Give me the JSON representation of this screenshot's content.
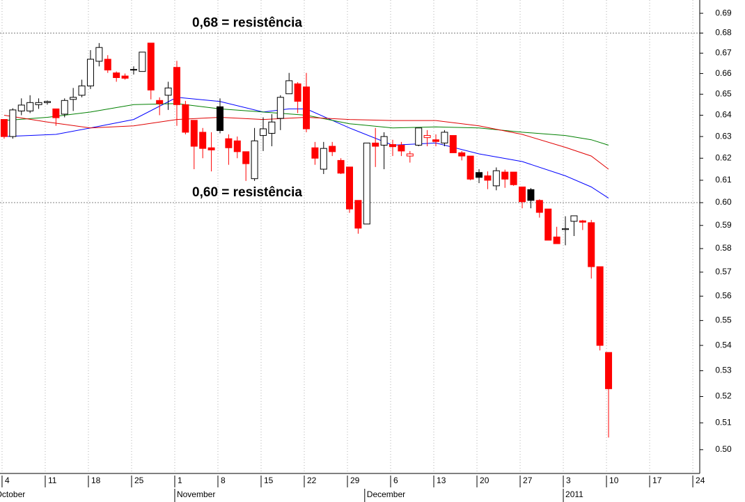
{
  "chart_data": {
    "type": "candlestick",
    "x": [
      0,
      1,
      2,
      3,
      4,
      5,
      6,
      7,
      8,
      9,
      10,
      11,
      12,
      13,
      14,
      15,
      16,
      17,
      18,
      19,
      20,
      21,
      22,
      23,
      24,
      25,
      26,
      27,
      28,
      29,
      30,
      31,
      32,
      33,
      34,
      35,
      36,
      37,
      38,
      39,
      40,
      41,
      42,
      43,
      44,
      45,
      46,
      47,
      48,
      49,
      50,
      51,
      52,
      53,
      54,
      55,
      56,
      57,
      58,
      59,
      60,
      61,
      62,
      63,
      64,
      65,
      66,
      67,
      68,
      69,
      70
    ],
    "open": [
      0.638,
      0.63,
      0.642,
      0.642,
      0.645,
      0.646,
      0.643,
      0.6405,
      0.6475,
      0.6495,
      0.654,
      0.666,
      0.667,
      0.6603,
      0.6588,
      0.6617,
      0.661,
      0.675,
      0.647,
      0.6495,
      0.663,
      0.645,
      0.6376,
      0.632,
      0.6248,
      0.644,
      0.629,
      0.628,
      0.623,
      0.6107,
      0.6305,
      0.6315,
      0.6385,
      0.6502,
      0.655,
      0.6535,
      0.6248,
      0.615,
      0.6255,
      0.619,
      0.616,
      0.601,
      0.5906,
      0.627,
      0.626,
      0.6263,
      0.626,
      0.621,
      0.626,
      0.6295,
      0.6285,
      0.627,
      0.6305,
      0.6225,
      0.621,
      0.6135,
      0.612,
      0.6075,
      0.6137,
      0.6137,
      0.607,
      0.6058,
      0.601,
      0.5972,
      0.585,
      0.5882,
      0.5918,
      0.592,
      0.5912,
      0.5723,
      0.5372
    ],
    "high": [
      0.638,
      0.6433,
      0.648,
      0.6495,
      0.648,
      0.647,
      0.643,
      0.648,
      0.653,
      0.657,
      0.6715,
      0.675,
      0.669,
      0.661,
      0.66,
      0.6635,
      0.6705,
      0.675,
      0.6485,
      0.656,
      0.6662,
      0.6468,
      0.6376,
      0.634,
      0.632,
      0.648,
      0.631,
      0.63,
      0.623,
      0.634,
      0.639,
      0.6405,
      0.6495,
      0.6603,
      0.6558,
      0.6603,
      0.6275,
      0.6275,
      0.6275,
      0.62,
      0.616,
      0.601,
      0.627,
      0.634,
      0.632,
      0.6285,
      0.6275,
      0.6233,
      0.634,
      0.633,
      0.631,
      0.633,
      0.6305,
      0.6233,
      0.621,
      0.615,
      0.614,
      0.6158,
      0.6148,
      0.6137,
      0.607,
      0.6065,
      0.6015,
      0.5972,
      0.5894,
      0.594,
      0.5942,
      0.5924,
      0.5924,
      0.5723,
      0.5372
    ],
    "low": [
      0.629,
      0.629,
      0.64,
      0.641,
      0.643,
      0.645,
      0.635,
      0.639,
      0.642,
      0.6485,
      0.6525,
      0.6635,
      0.6603,
      0.656,
      0.657,
      0.6595,
      0.661,
      0.6475,
      0.64,
      0.6425,
      0.635,
      0.631,
      0.615,
      0.62,
      0.614,
      0.6315,
      0.617,
      0.62,
      0.6097,
      0.6097,
      0.6233,
      0.6255,
      0.633,
      0.6502,
      0.641,
      0.632,
      0.617,
      0.6128,
      0.621,
      0.6128,
      0.5955,
      0.5864,
      0.5906,
      0.616,
      0.615,
      0.621,
      0.621,
      0.618,
      0.6255,
      0.6255,
      0.6255,
      0.6255,
      0.6225,
      0.619,
      0.61,
      0.6087,
      0.606,
      0.6055,
      0.6066,
      0.6075,
      0.5975,
      0.5975,
      0.5934,
      0.5836,
      0.5821,
      0.5814,
      0.5854,
      0.588,
      0.5673,
      0.538,
      0.5045
    ],
    "close": [
      0.63,
      0.6425,
      0.6448,
      0.646,
      0.646,
      0.6465,
      0.6388,
      0.647,
      0.6485,
      0.654,
      0.667,
      0.6728,
      0.6617,
      0.658,
      0.6577,
      0.662,
      0.6705,
      0.652,
      0.6455,
      0.653,
      0.645,
      0.632,
      0.6255,
      0.6245,
      0.6238,
      0.6328,
      0.6248,
      0.623,
      0.6175,
      0.628,
      0.6336,
      0.6368,
      0.6485,
      0.6565,
      0.6466,
      0.6336,
      0.62,
      0.6245,
      0.623,
      0.6132,
      0.5972,
      0.5888,
      0.627,
      0.6255,
      0.63,
      0.6253,
      0.6233,
      0.622,
      0.634,
      0.6305,
      0.6277,
      0.632,
      0.6225,
      0.621,
      0.6105,
      0.6113,
      0.61,
      0.6143,
      0.6105,
      0.608,
      0.6004,
      0.601,
      0.5957,
      0.5836,
      0.5821,
      0.5886,
      0.5942,
      0.5914,
      0.5723,
      0.54,
      0.523
    ],
    "up_color": "#000000",
    "down_color": "#ff0000",
    "hollow_fill": "#ffffff",
    "lines": [
      {
        "color": "#0000ff",
        "x": [
          0,
          6,
          10,
          15,
          20,
          25,
          30,
          33,
          35,
          40,
          45,
          50,
          55,
          60,
          65,
          68,
          70
        ],
        "values": [
          0.63,
          0.631,
          0.634,
          0.638,
          0.6485,
          0.6465,
          0.6415,
          0.643,
          0.643,
          0.634,
          0.626,
          0.627,
          0.622,
          0.6185,
          0.612,
          0.607,
          0.602
        ]
      },
      {
        "color": "#008000",
        "x": [
          0,
          5,
          10,
          15,
          20,
          25,
          30,
          35,
          40,
          45,
          50,
          55,
          60,
          65,
          68,
          70
        ],
        "values": [
          0.6375,
          0.639,
          0.6415,
          0.645,
          0.6455,
          0.643,
          0.6415,
          0.64,
          0.636,
          0.634,
          0.6345,
          0.634,
          0.632,
          0.6305,
          0.6285,
          0.626
        ]
      },
      {
        "color": "#e00000",
        "x": [
          0,
          5,
          10,
          15,
          20,
          25,
          30,
          35,
          40,
          45,
          50,
          55,
          60,
          65,
          68,
          70
        ],
        "values": [
          0.64,
          0.6368,
          0.634,
          0.635,
          0.638,
          0.639,
          0.638,
          0.639,
          0.638,
          0.6375,
          0.6375,
          0.635,
          0.631,
          0.625,
          0.621,
          0.615
        ]
      }
    ],
    "annotations": [
      {
        "text": "0,68 = resistência",
        "value": 0.68,
        "color": "#1a1acc"
      },
      {
        "text": "0,60 = resistência",
        "value": 0.6,
        "color": "#1a1acc"
      }
    ],
    "ylim": [
      0.4913,
      0.6968
    ],
    "log_y": true,
    "yticks": [
      0.69,
      0.68,
      0.67,
      0.66,
      0.65,
      0.64,
      0.63,
      0.62,
      0.61,
      {
        "value": 0.6,
        "label": "0.60"
      },
      0.59,
      0.58,
      0.57,
      0.56,
      0.55,
      0.54,
      0.53,
      0.52,
      0.51,
      {
        "value": 0.5,
        "label": "0.50"
      }
    ],
    "xlim": [
      -0.48,
      80.56
    ],
    "xticks": [
      {
        "value": 0,
        "label": "4"
      },
      {
        "value": 5,
        "label": "11"
      },
      {
        "value": 10,
        "label": "18"
      },
      {
        "value": 15,
        "label": "25"
      },
      {
        "value": 20,
        "label": "1"
      },
      {
        "value": 25,
        "label": "8"
      },
      {
        "value": 30,
        "label": "15"
      },
      {
        "value": 35,
        "label": "22"
      },
      {
        "value": 40,
        "label": "29"
      },
      {
        "value": 45,
        "label": "6"
      },
      {
        "value": 50,
        "label": "13"
      },
      {
        "value": 55,
        "label": "20"
      },
      {
        "value": 60,
        "label": "27"
      },
      {
        "value": 65,
        "label": "3"
      },
      {
        "value": 70,
        "label": "10"
      },
      {
        "value": 75,
        "label": "17"
      },
      {
        "value": 80,
        "label": "24"
      }
    ],
    "month_labels": [
      {
        "value": -1,
        "label": "October"
      },
      {
        "value": 20,
        "label": "November"
      },
      {
        "value": 42,
        "label": "December"
      },
      {
        "value": 65,
        "label": "2011"
      }
    ],
    "grid": "x"
  }
}
